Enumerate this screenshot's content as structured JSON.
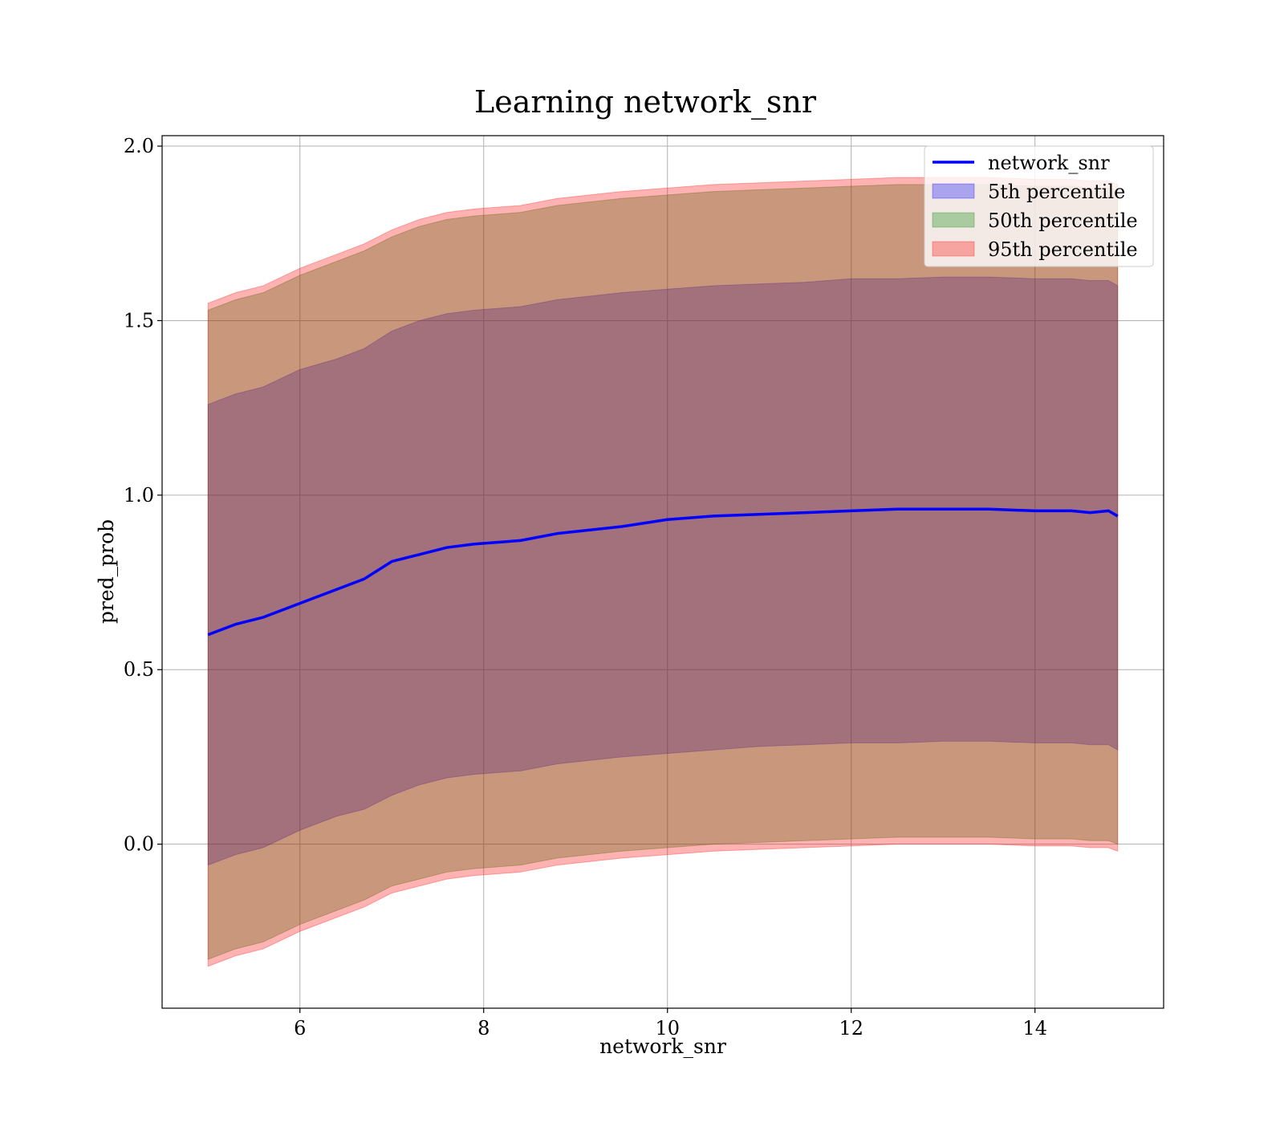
{
  "chart_data": {
    "type": "area",
    "title": "Learning network_snr",
    "xlabel": "network_snr",
    "ylabel": "pred_prob",
    "xlim": [
      4.5,
      15.4
    ],
    "ylim": [
      -0.47,
      2.03
    ],
    "grid": true,
    "legend_position": "top-right",
    "x_ticks": [
      6,
      8,
      10,
      12,
      14
    ],
    "y_ticks": [
      0.0,
      0.5,
      1.0,
      1.5,
      2.0
    ],
    "x_tick_labels": [
      "6",
      "8",
      "10",
      "12",
      "14"
    ],
    "y_tick_labels": [
      "0.0",
      "0.5",
      "1.0",
      "1.5",
      "2.0"
    ],
    "x": [
      5.0,
      5.1,
      5.3,
      5.6,
      6.0,
      6.4,
      6.7,
      7.0,
      7.3,
      7.6,
      7.9,
      8.4,
      8.8,
      9.5,
      10.0,
      10.5,
      11.0,
      11.5,
      12.0,
      12.5,
      13.0,
      13.5,
      14.0,
      14.4,
      14.6,
      14.8,
      14.9
    ],
    "series": [
      {
        "name": "network_snr",
        "kind": "line",
        "color": "#0000ff",
        "y": [
          0.6,
          0.61,
          0.63,
          0.65,
          0.69,
          0.73,
          0.76,
          0.81,
          0.83,
          0.85,
          0.86,
          0.87,
          0.89,
          0.91,
          0.93,
          0.94,
          0.945,
          0.95,
          0.955,
          0.96,
          0.96,
          0.96,
          0.955,
          0.955,
          0.95,
          0.955,
          0.94
        ]
      },
      {
        "name": "5th percentile",
        "kind": "band",
        "color": "#0000ff",
        "lower": [
          -0.06,
          -0.05,
          -0.03,
          -0.01,
          0.04,
          0.08,
          0.1,
          0.14,
          0.17,
          0.19,
          0.2,
          0.21,
          0.23,
          0.25,
          0.26,
          0.27,
          0.28,
          0.285,
          0.29,
          0.29,
          0.295,
          0.295,
          0.29,
          0.29,
          0.285,
          0.285,
          0.27
        ],
        "upper": [
          1.26,
          1.27,
          1.29,
          1.31,
          1.36,
          1.39,
          1.42,
          1.47,
          1.5,
          1.52,
          1.53,
          1.54,
          1.56,
          1.58,
          1.59,
          1.6,
          1.605,
          1.61,
          1.62,
          1.62,
          1.625,
          1.625,
          1.62,
          1.62,
          1.615,
          1.615,
          1.6
        ]
      },
      {
        "name": "50th percentile",
        "kind": "band",
        "color": "#008000",
        "lower": [
          -0.33,
          -0.32,
          -0.3,
          -0.28,
          -0.23,
          -0.19,
          -0.16,
          -0.12,
          -0.1,
          -0.08,
          -0.07,
          -0.06,
          -0.04,
          -0.02,
          -0.01,
          0.0,
          0.005,
          0.01,
          0.015,
          0.02,
          0.02,
          0.02,
          0.015,
          0.015,
          0.01,
          0.01,
          0.0
        ],
        "upper": [
          1.53,
          1.54,
          1.56,
          1.58,
          1.63,
          1.67,
          1.7,
          1.74,
          1.77,
          1.79,
          1.8,
          1.81,
          1.83,
          1.85,
          1.86,
          1.87,
          1.875,
          1.88,
          1.885,
          1.89,
          1.89,
          1.89,
          1.885,
          1.885,
          1.88,
          1.88,
          1.87
        ]
      },
      {
        "name": "95th percentile",
        "kind": "band",
        "color": "#ff0000",
        "lower": [
          -0.35,
          -0.34,
          -0.32,
          -0.3,
          -0.25,
          -0.21,
          -0.18,
          -0.14,
          -0.12,
          -0.1,
          -0.09,
          -0.08,
          -0.06,
          -0.04,
          -0.03,
          -0.02,
          -0.015,
          -0.01,
          -0.005,
          0.0,
          0.0,
          0.0,
          -0.005,
          -0.005,
          -0.01,
          -0.01,
          -0.02
        ],
        "upper": [
          1.55,
          1.56,
          1.58,
          1.6,
          1.65,
          1.69,
          1.72,
          1.76,
          1.79,
          1.81,
          1.82,
          1.83,
          1.85,
          1.87,
          1.88,
          1.89,
          1.895,
          1.9,
          1.905,
          1.91,
          1.91,
          1.91,
          1.905,
          1.905,
          1.9,
          1.9,
          1.89
        ]
      }
    ]
  }
}
